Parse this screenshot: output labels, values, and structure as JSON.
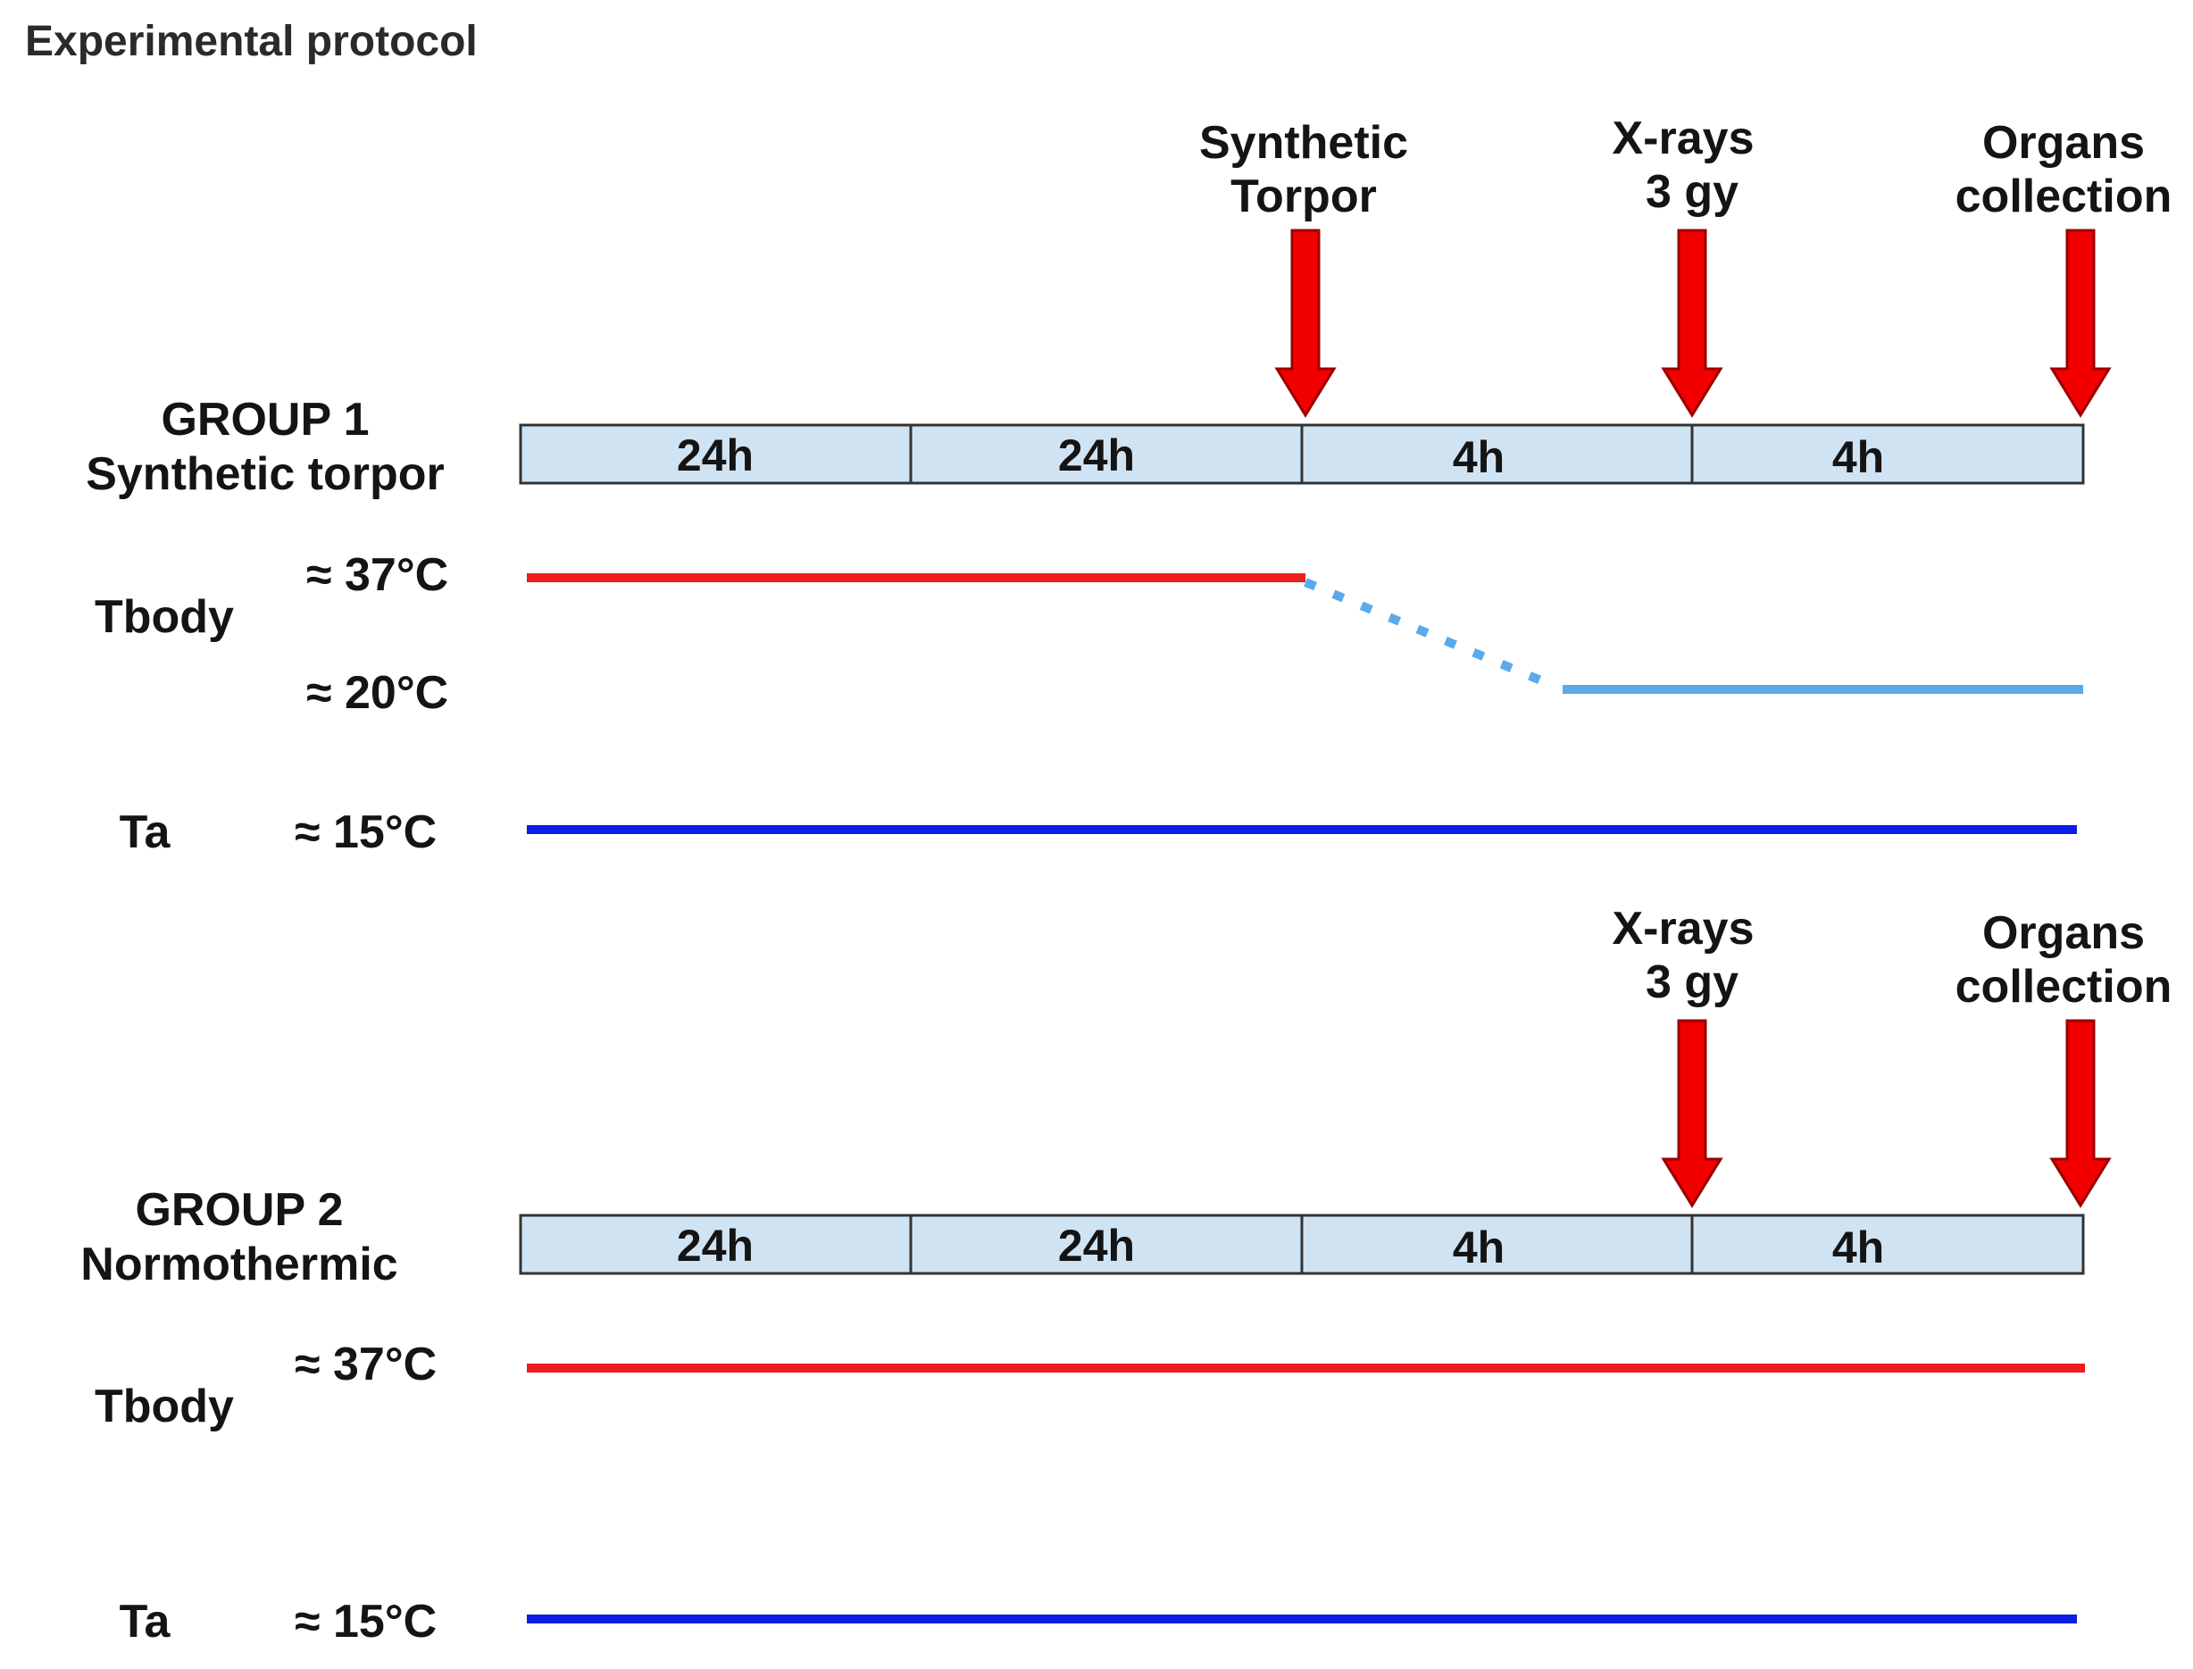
{
  "title": "Experimental protocol",
  "colors": {
    "bar_fill": "#cfe3f3",
    "bar_stroke": "#333333",
    "arrow": "#f20000",
    "tbody_normal": "#ee1c1c",
    "tbody_torpor": "#5aaaeb",
    "ambient": "#0a1ee6"
  },
  "events": {
    "torpor": [
      "Synthetic",
      "Torpor"
    ],
    "xray": [
      "X-rays",
      "3 gy"
    ],
    "organs": [
      "Organs",
      "collection"
    ]
  },
  "group1": {
    "name": "GROUP 1",
    "condition": "Synthetic torpor",
    "segments": [
      "24h",
      "24h",
      "4h",
      "4h"
    ],
    "tbody_label": "Tbody",
    "t_high": "≈ 37°C",
    "t_low": "≈ 20°C",
    "ta_label": "Ta",
    "ta_value": "≈ 15°C"
  },
  "group2": {
    "name": "GROUP 2",
    "condition": "Normothermic",
    "segments": [
      "24h",
      "24h",
      "4h",
      "4h"
    ],
    "tbody_label": "Tbody",
    "t_high": "≈ 37°C",
    "ta_label": "Ta",
    "ta_value": "≈ 15°C"
  }
}
